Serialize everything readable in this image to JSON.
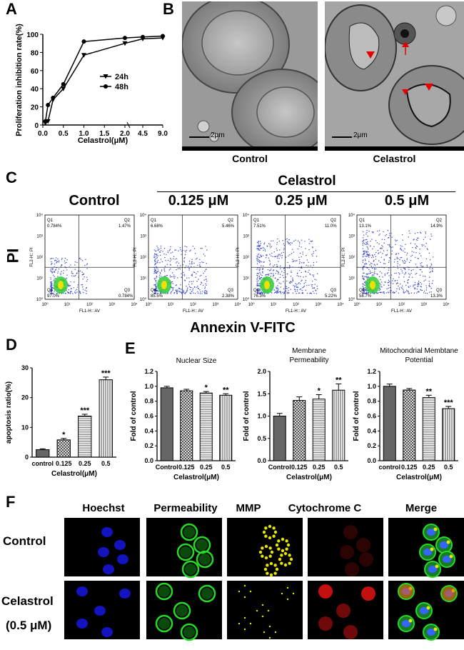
{
  "panels": {
    "A": "A",
    "B": "B",
    "C": "C",
    "D": "D",
    "E": "E",
    "F": "F"
  },
  "panelA": {
    "chart_data": {
      "type": "line",
      "ylabel": "Proliferation inhibition rate(%)",
      "xlabel": "Celastrol(μM)",
      "x_ticks": [
        "0.0",
        "0.5",
        "1.0",
        "1.5",
        "2.0",
        "4.5",
        "9.0"
      ],
      "y_ticks": [
        "0",
        "20",
        "40",
        "60",
        "80",
        "100"
      ],
      "ylim": [
        0,
        100
      ],
      "x": [
        0.0625,
        0.125,
        0.25,
        0.5,
        1.0,
        2.0,
        4.5,
        9.0
      ],
      "series": [
        {
          "name": "24h",
          "marker": "triangle",
          "values": [
            2,
            4,
            28,
            40,
            77,
            90,
            95,
            96
          ]
        },
        {
          "name": "48h",
          "marker": "circle",
          "values": [
            4,
            22,
            30,
            45,
            92,
            96,
            97,
            98
          ]
        }
      ]
    }
  },
  "panelB": {
    "scale_text": "2μm",
    "labels": [
      "Control",
      "Celastrol"
    ]
  },
  "panelC": {
    "group_label": "Celastrol",
    "conditions": [
      "Control",
      "0.125 μM",
      "0.25 μM",
      "0.5 μM"
    ],
    "ylabel": "PI",
    "xlabel": "Annexin V-FITC",
    "axis_y": "FL2-H:: PI",
    "axis_x": "FL1-H:: AV",
    "quadrants": [
      {
        "Q1": "Q1",
        "Q2": "Q2",
        "Q3": "Q3",
        "Q4": "Q4",
        "q1v": "0.784%",
        "q2v": "1.47%",
        "q3v": "0.784%",
        "q4v": "97.0%"
      },
      {
        "Q1": "Q1",
        "Q2": "Q2",
        "Q3": "Q3",
        "Q4": "Q4",
        "q1v": "6.68%",
        "q2v": "5.46%",
        "q3v": "2.38%",
        "q4v": "85.5%"
      },
      {
        "Q1": "Q1",
        "Q2": "Q2",
        "Q3": "Q3",
        "Q4": "Q4",
        "q1v": "7.51%",
        "q2v": "11.0%",
        "q3v": "5.22%",
        "q4v": "76.3%"
      },
      {
        "Q1": "Q1",
        "Q2": "Q2",
        "Q3": "Q3",
        "Q4": "Q4",
        "q1v": "13.1%",
        "q2v": "14.9%",
        "q3v": "13.3%",
        "q4v": "58.7%"
      }
    ],
    "ticks": [
      "10⁰",
      "10¹",
      "10²",
      "10³",
      "10⁴"
    ]
  },
  "panelD": {
    "chart_data": {
      "type": "bar",
      "ylabel": "apoptosis ratio(%)",
      "xlabel": "Celastrol(μM)",
      "categories": [
        "control",
        "0.125",
        "0.25",
        "0.5"
      ],
      "values": [
        2.5,
        5.8,
        13.8,
        26.0
      ],
      "errors": [
        0.3,
        0.5,
        0.6,
        0.9
      ],
      "significance": [
        "",
        "*",
        "***",
        "***"
      ],
      "y_ticks": [
        "0",
        "10",
        "20",
        "30"
      ],
      "ylim": [
        0,
        30
      ]
    }
  },
  "panelE": {
    "chart_data": [
      {
        "type": "bar",
        "title": "Nuclear Size",
        "ylabel": "Fold of control",
        "xlabel": "Celastrol(μM)",
        "categories": [
          "Control",
          "0.125",
          "0.25",
          "0.5"
        ],
        "values": [
          0.98,
          0.94,
          0.91,
          0.88
        ],
        "errors": [
          0.02,
          0.02,
          0.02,
          0.02
        ],
        "significance": [
          "",
          "",
          "*",
          "**"
        ],
        "ylim": [
          0,
          1.2
        ],
        "y_ticks": [
          "0.0",
          "0.2",
          "0.4",
          "0.6",
          "0.8",
          "1.0",
          "1.2"
        ]
      },
      {
        "type": "bar",
        "title": "Membrane Permeability",
        "ylabel": "Fold of control",
        "xlabel": "Celastrol(μM)",
        "categories": [
          "Control",
          "0.125",
          "0.25",
          "0.5"
        ],
        "values": [
          1.0,
          1.35,
          1.38,
          1.58
        ],
        "errors": [
          0.06,
          0.08,
          0.1,
          0.14
        ],
        "significance": [
          "",
          "",
          "*",
          "**"
        ],
        "ylim": [
          0,
          2.0
        ],
        "y_ticks": [
          "0.0",
          "0.5",
          "1.0",
          "1.5",
          "2.0"
        ]
      },
      {
        "type": "bar",
        "title": "Mitochondrial Membtane Potential",
        "ylabel": "Fold of control",
        "xlabel": "Celastrol(μM)",
        "categories": [
          "control",
          "0.125",
          "0.25",
          "0.5"
        ],
        "values": [
          1.0,
          0.95,
          0.85,
          0.7
        ],
        "errors": [
          0.03,
          0.02,
          0.03,
          0.03
        ],
        "significance": [
          "",
          "",
          "**",
          "***"
        ],
        "ylim": [
          0,
          1.2
        ],
        "y_ticks": [
          "0.0",
          "0.2",
          "0.4",
          "0.6",
          "0.8",
          "1.0",
          "1.2"
        ]
      }
    ]
  },
  "panelF": {
    "columns": [
      "Hoechst",
      "Permeability",
      "MMP",
      "Cytochrome C",
      "Merge"
    ],
    "rows": [
      "Control",
      "Celastrol",
      "(0.5 μM)"
    ],
    "colors": {
      "hoechst": "#1a1aff",
      "perm": "#22dd22",
      "mmp": "#e6e600",
      "cyto": "#cc1111"
    }
  }
}
